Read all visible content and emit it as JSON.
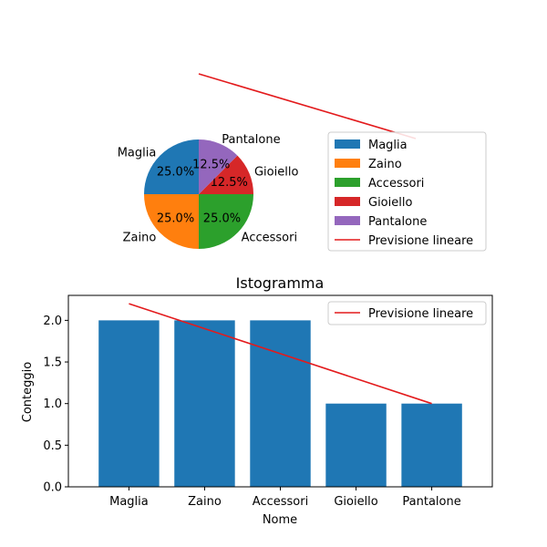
{
  "chart_data": [
    {
      "type": "pie",
      "labels": [
        "Maglia",
        "Zaino",
        "Accessori",
        "Gioiello",
        "Pantalone"
      ],
      "values": [
        25.0,
        25.0,
        25.0,
        12.5,
        12.5
      ],
      "pct_labels": [
        "25.0%",
        "25.0%",
        "25.0%",
        "12.5%",
        "12.5%"
      ],
      "colors": [
        "#1f77b4",
        "#ff7f0e",
        "#2ca02c",
        "#d62728",
        "#9467bd"
      ],
      "legend": {
        "placement": "right",
        "entries": [
          "Maglia",
          "Zaino",
          "Accessori",
          "Gioiello",
          "Pantalone",
          "Previsione lineare"
        ]
      },
      "trend_line": {
        "name": "Previsione lineare",
        "color": "#e31a1c"
      }
    },
    {
      "type": "bar",
      "title": "Istogramma",
      "xlabel": "Nome",
      "ylabel": "Conteggio",
      "categories": [
        "Maglia",
        "Zaino",
        "Accessori",
        "Gioiello",
        "Pantalone"
      ],
      "values": [
        2,
        2,
        2,
        1,
        1
      ],
      "ylim": [
        0,
        2.3
      ],
      "yticks": [
        "0.0",
        "0.5",
        "1.0",
        "1.5",
        "2.0"
      ],
      "bar_color": "#1f77b4",
      "grid": false,
      "trend_line": {
        "name": "Previsione lineare",
        "color": "#e31a1c",
        "start": 2.2,
        "end": 1.0
      },
      "legend": {
        "placement": "top-right",
        "entries": [
          "Previsione lineare"
        ]
      }
    }
  ]
}
